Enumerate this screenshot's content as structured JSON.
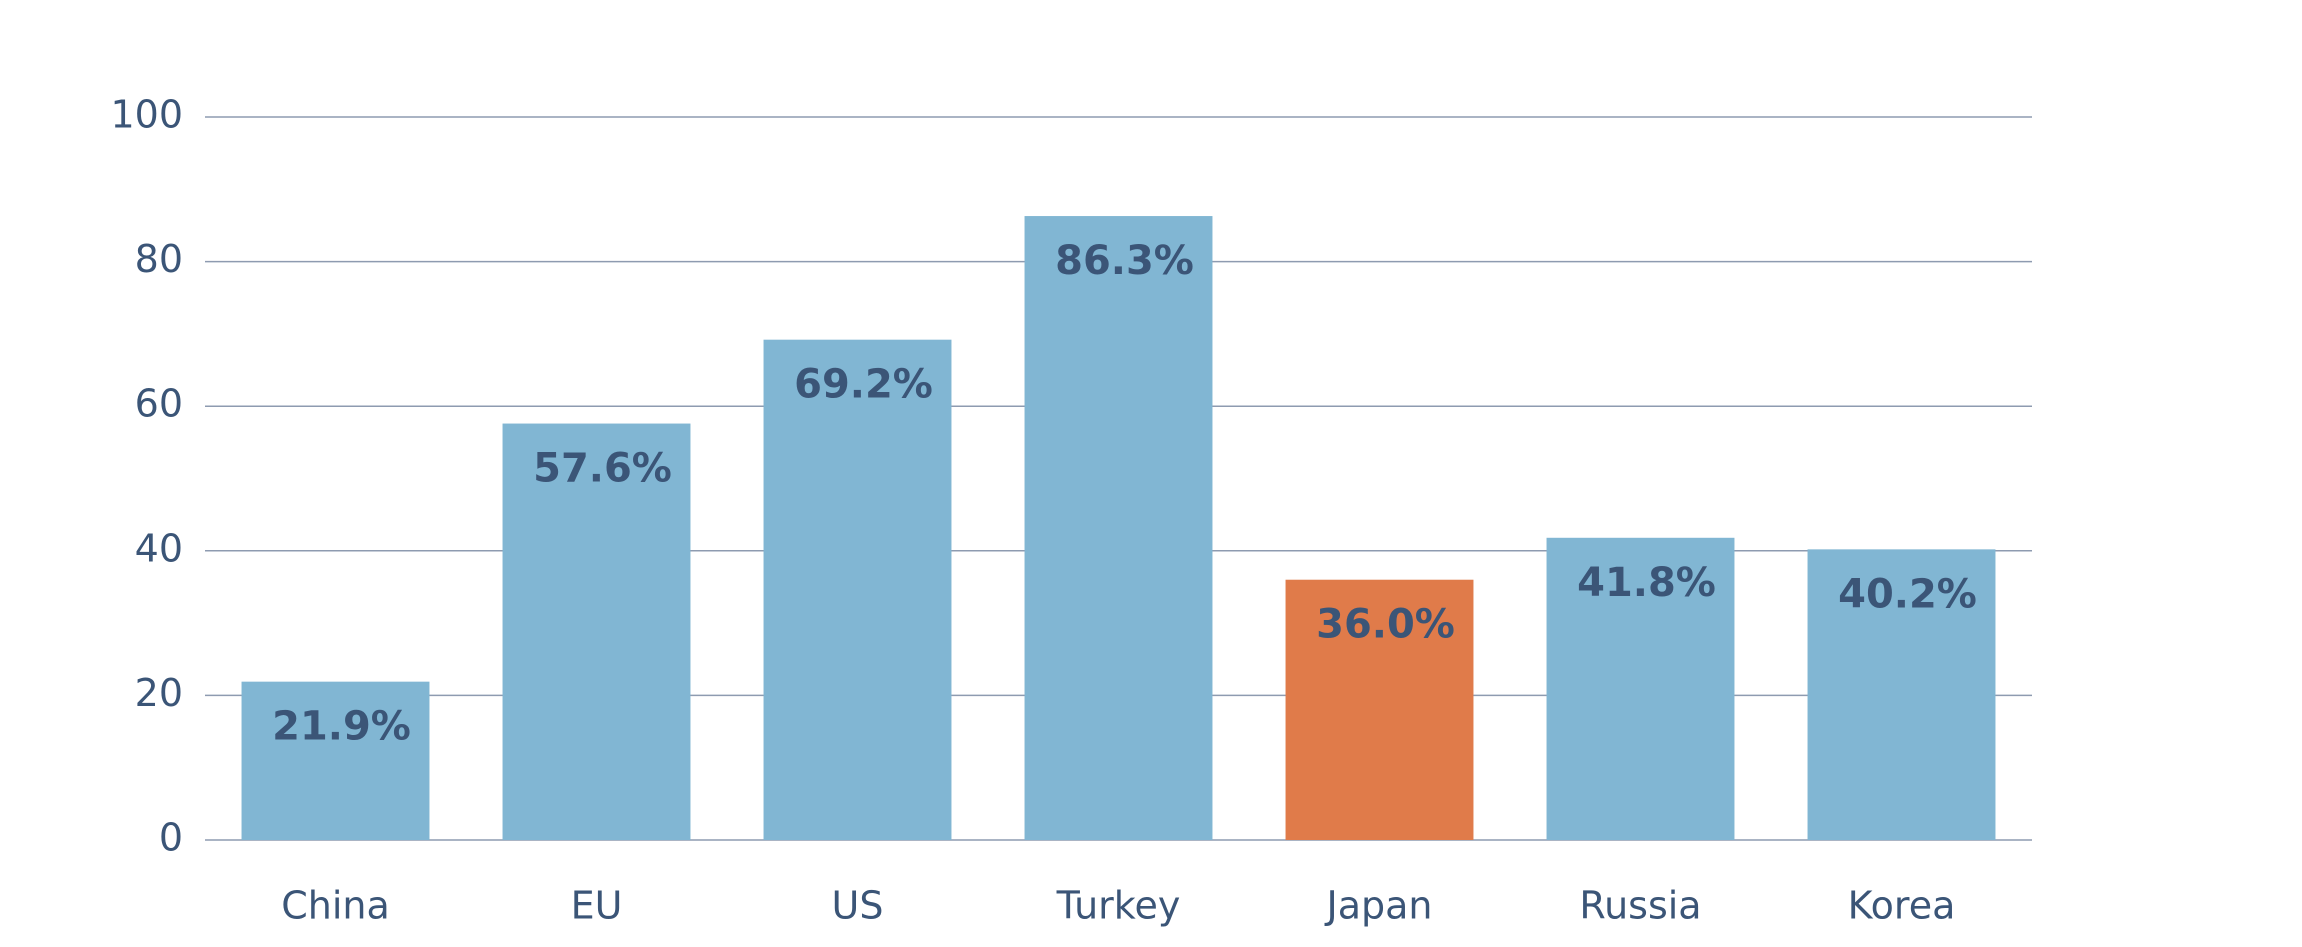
{
  "chart_data": {
    "type": "bar",
    "categories": [
      "China",
      "EU",
      "US",
      "Turkey",
      "Japan",
      "Russia",
      "Korea"
    ],
    "values": [
      21.9,
      57.6,
      69.2,
      86.3,
      36.0,
      41.8,
      40.2
    ],
    "value_labels": [
      "21.9%",
      "57.6%",
      "69.2%",
      "86.3%",
      "36.0%",
      "41.8%",
      "40.2%"
    ],
    "colors": [
      "#81b6d3",
      "#81b6d3",
      "#81b6d3",
      "#81b6d3",
      "#e07b4a",
      "#81b6d3",
      "#81b6d3"
    ],
    "ylim": [
      0,
      100
    ],
    "yticks": [
      0,
      20,
      40,
      60,
      80,
      100
    ],
    "grid": true
  }
}
